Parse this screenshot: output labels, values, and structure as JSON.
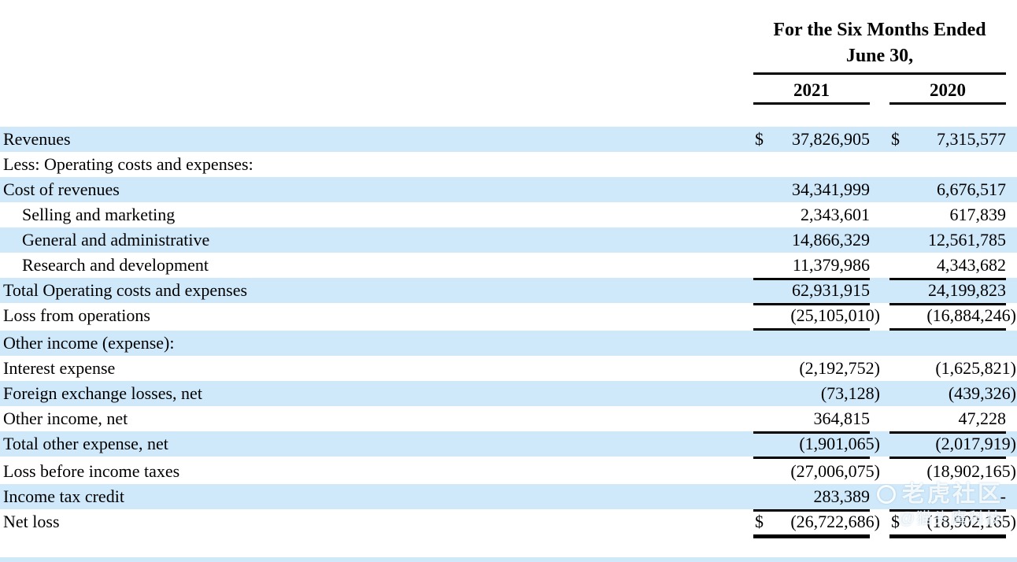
{
  "header": {
    "title_line1": "For the Six Months Ended",
    "title_line2": "June 30,",
    "col_2021": "2021",
    "col_2020": "2020"
  },
  "watermark": {
    "community": "老虎社区",
    "handle": "@猫头鹰科技"
  },
  "colors": {
    "stripe": "#cfe9fb",
    "rule": "#000000",
    "text": "#000000"
  },
  "rows": [
    {
      "label": "Revenues",
      "indent": 0,
      "stripe": true,
      "dollar": true,
      "v2021": "37,826,905",
      "v2020": "7,315,577",
      "line": "none"
    },
    {
      "label": "Less: Operating costs and expenses:",
      "indent": 0,
      "stripe": false,
      "dollar": false,
      "v2021": "",
      "v2020": "",
      "line": "none"
    },
    {
      "label": "Cost of revenues",
      "indent": 0,
      "stripe": true,
      "dollar": false,
      "v2021": "34,341,999",
      "v2020": "6,676,517",
      "line": "none"
    },
    {
      "label": "Selling and marketing",
      "indent": 1,
      "stripe": false,
      "dollar": false,
      "v2021": "2,343,601",
      "v2020": "617,839",
      "line": "none"
    },
    {
      "label": "General and administrative",
      "indent": 1,
      "stripe": true,
      "dollar": false,
      "v2021": "14,866,329",
      "v2020": "12,561,785",
      "line": "none"
    },
    {
      "label": "Research and development",
      "indent": 1,
      "stripe": false,
      "dollar": false,
      "v2021": "11,379,986",
      "v2020": "4,343,682",
      "line": "single"
    },
    {
      "label": "Total Operating costs and expenses",
      "indent": 0,
      "stripe": true,
      "dollar": false,
      "v2021": "62,931,915",
      "v2020": "24,199,823",
      "line": "single"
    },
    {
      "label": "Loss from operations",
      "indent": 0,
      "stripe": false,
      "dollar": false,
      "v2021": "(25,105,010)",
      "v2020": "(16,884,246)",
      "line": "single",
      "gap": true
    },
    {
      "label": "Other income (expense):",
      "indent": 0,
      "stripe": true,
      "dollar": false,
      "v2021": "",
      "v2020": "",
      "line": "none"
    },
    {
      "label": "Interest expense",
      "indent": 0,
      "stripe": false,
      "dollar": false,
      "v2021": "(2,192,752)",
      "v2020": "(1,625,821)",
      "line": "none"
    },
    {
      "label": "Foreign exchange losses, net",
      "indent": 0,
      "stripe": true,
      "dollar": false,
      "v2021": "(73,128)",
      "v2020": "(439,326)",
      "line": "none"
    },
    {
      "label": "Other income, net",
      "indent": 0,
      "stripe": false,
      "dollar": false,
      "v2021": "364,815",
      "v2020": "47,228",
      "line": "single"
    },
    {
      "label": "Total other expense, net",
      "indent": 0,
      "stripe": true,
      "dollar": false,
      "v2021": "(1,901,065)",
      "v2020": "(2,017,919)",
      "line": "single",
      "gap": true
    },
    {
      "label": "Loss before income taxes",
      "indent": 0,
      "stripe": false,
      "dollar": false,
      "v2021": "(27,006,075)",
      "v2020": "(18,902,165)",
      "line": "none"
    },
    {
      "label": "Income tax credit",
      "indent": 0,
      "stripe": true,
      "dollar": false,
      "v2021": "283,389",
      "v2020": "-",
      "line": "single"
    },
    {
      "label": "Net loss",
      "indent": 0,
      "stripe": false,
      "dollar": true,
      "v2021": "(26,722,686)",
      "v2020": "(18,902,165)",
      "line": "thick"
    }
  ]
}
